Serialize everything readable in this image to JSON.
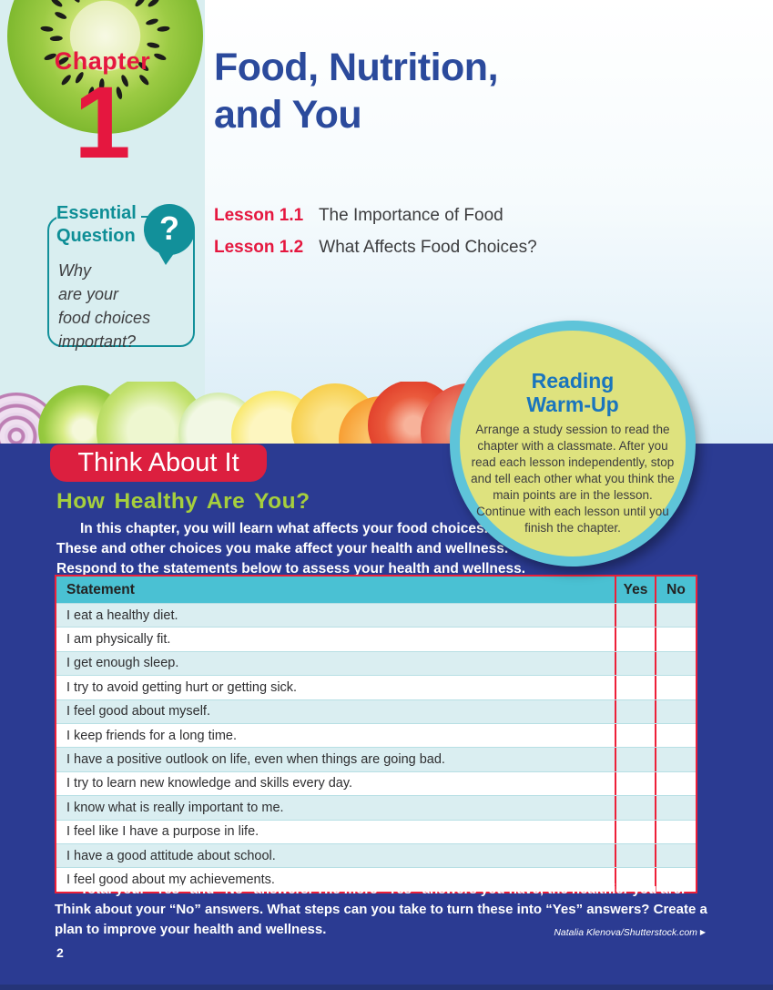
{
  "page": {
    "chapter_label": "Chapter",
    "chapter_number": "1",
    "title": "Food, Nutrition,\nand You",
    "page_number": "2",
    "credit": "Natalia Klenova/Shutterstock.com",
    "credit_arrow": "▶"
  },
  "essential_question": {
    "heading": "Essential\nQuestion",
    "icon_glyph": "?",
    "text": "Why\nare your\nfood choices\nimportant?"
  },
  "lessons": [
    {
      "number": "Lesson 1.1",
      "title": "The Importance of Food"
    },
    {
      "number": "Lesson 1.2",
      "title": "What Affects Food Choices?"
    }
  ],
  "reading_warmup": {
    "title": "Reading\nWarm-Up",
    "body": "Arrange a study session to read the chapter with a classmate. After you read each lesson independently, stop and tell each other what you think the main points are in the lesson. Continue with each lesson until you finish the chapter."
  },
  "think_about_it": {
    "banner": "Think About It",
    "heading": "How Healthy Are You?",
    "intro": "In this chapter, you will learn what affects your food choices.\nThese and other choices you make affect your health and wellness.\nRespond to the statements below to assess your health and wellness.",
    "closing": "Total your “Yes” and “No” answers. The more “Yes” answers you have, the healthier you are. Think about your “No” answers. What steps can you take to turn these into “Yes” answers? Create a plan to improve your health and wellness."
  },
  "assessment_table": {
    "headers": [
      "Statement",
      "Yes",
      "No"
    ],
    "rows": [
      "I eat a healthy diet.",
      "I am physically fit.",
      "I get enough sleep.",
      "I try to avoid getting hurt or getting sick.",
      "I feel good about myself.",
      "I keep friends for a long time.",
      "I have a positive outlook on life, even when things are going bad.",
      "I try to learn new knowledge and skills every day.",
      "I know what is really important to me.",
      "I feel like I have a purpose in life.",
      "I have a good attitude about school.",
      "I feel good about my achievements."
    ]
  },
  "colors": {
    "accent_red": "#e5173f",
    "title_blue": "#2b4a9c",
    "teal": "#12909a",
    "section_blue": "#2b3b92",
    "heading_green": "#a6cf3d",
    "warmup_fill": "#dee27e",
    "warmup_border": "#5ec4d9",
    "warmup_title_blue": "#1a75bd",
    "table_header_teal": "#4ac1d3",
    "table_row_light": "#daeef1",
    "table_border_red": "#ed2039",
    "left_column_cyan": "#d9eef0"
  }
}
